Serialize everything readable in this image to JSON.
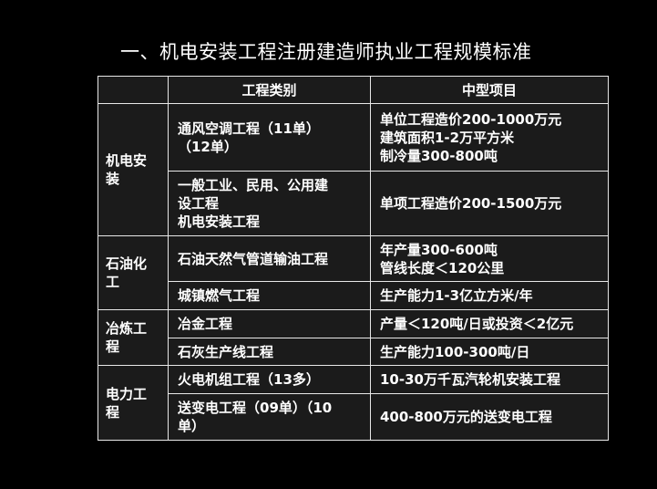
{
  "title": "一、机电安装工程注册建造师执业工程规模标准",
  "table": {
    "headers": [
      "",
      "工程类别",
      "中型项目"
    ],
    "groups": [
      {
        "category": "机电安\n装",
        "rows": [
          {
            "type": "通风空调工程（11单）\n（12单）",
            "medium": "单位工程造价200-1000万元\n建筑面积1-2万平方米\n制冷量300-800吨"
          },
          {
            "type": "一般工业、民用、公用建\n设工程\n机电安装工程",
            "medium": "单项工程造价200-1500万元"
          }
        ]
      },
      {
        "category": "石油化\n工",
        "rows": [
          {
            "type": "石油天然气管道输油工程",
            "medium": "年产量300-600吨\n管线长度＜120公里"
          },
          {
            "type": "城镇燃气工程",
            "medium": "生产能力1-3亿立方米/年"
          }
        ]
      },
      {
        "category": "冶炼工\n程",
        "rows": [
          {
            "type": "冶金工程",
            "medium": "产量＜120吨/日或投资＜2亿元"
          },
          {
            "type": "石灰生产线工程",
            "medium": "生产能力100-300吨/日"
          }
        ]
      },
      {
        "category": "电力工\n程",
        "rows": [
          {
            "type": "火电机组工程（13多）",
            "medium": "10-30万千瓦汽轮机安装工程"
          },
          {
            "type": "送变电工程（09单）（10\n单）",
            "medium": "400-800万元的送变电工程"
          }
        ]
      }
    ]
  }
}
